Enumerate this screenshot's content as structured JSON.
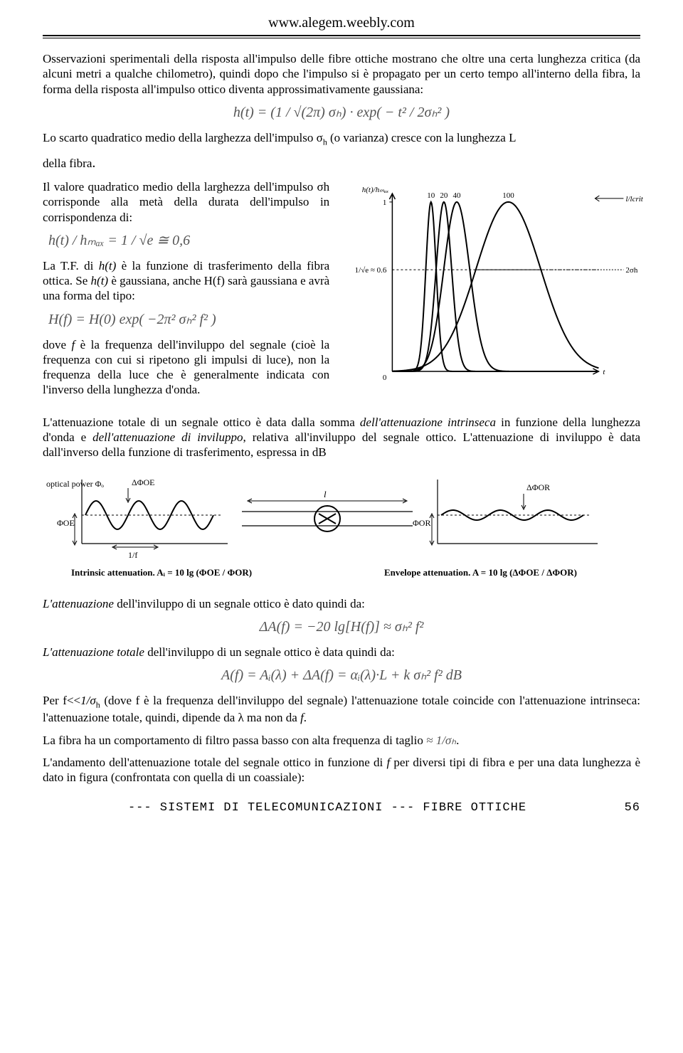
{
  "header": {
    "url": "www.alegem.weebly.com"
  },
  "p1": "Osservazioni sperimentali della risposta all'impulso delle fibre ottiche mostrano che oltre una certa lunghezza critica (da alcuni metri a qualche chilometro), quindi dopo che l'impulso si è propagato per un certo tempo all'interno della fibra, la forma della risposta all'impulso ottico diventa approssimativamente gaussiana:",
  "f1": "h(t) = (1 / √(2π) σₕ) · exp( − t² / 2σₕ² )",
  "p2a": "Lo scarto quadratico medio della larghezza dell'impulso σ",
  "p2b": " (o varianza)  cresce con la lunghezza L",
  "p2c": "della fibra",
  "left": {
    "p1": "Il valore quadratico medio della larghezza dell'impulso σh corrisponde alla metà della durata dell'impulso in corrispondenza di:",
    "f1": "h(t) / hₘₐₓ = 1 / √e ≅ 0,6",
    "p2a": "La T.F. di ",
    "p2b": "h(t)",
    "p2c": " è la funzione di trasferimento della fibra ottica. Se ",
    "p2d": "h(t)",
    "p2e": " è gaussiana, anche H(f) sarà gaussiana e avrà una forma del tipo:",
    "f2": "H(f) = H(0) exp( −2π² σₕ² f² )",
    "p3a": "dove ",
    "p3b": "f",
    "p3c": " è la frequenza dell'inviluppo del segnale (cioè la frequenza con cui si ripetono gli impulsi di luce), non la frequenza della luce che è generalmente indicata con l'inverso della lunghezza d'onda."
  },
  "gauss_chart": {
    "type": "line",
    "ylabel": "h(t)/hₘₐₓ",
    "yline": {
      "label": "1/√e ≈ 0.6",
      "y": 0.6
    },
    "xlabel": "t",
    "right_arrow_label": "l/lcrit",
    "right_width_label": "2σh",
    "curves": [
      {
        "label": "10",
        "center": 60,
        "sigma": 8,
        "color": "#000000",
        "linewidth": 2
      },
      {
        "label": "20",
        "center": 80,
        "sigma": 12,
        "color": "#000000",
        "linewidth": 2
      },
      {
        "label": "40",
        "center": 100,
        "sigma": 20,
        "color": "#000000",
        "linewidth": 2
      },
      {
        "label": "100",
        "center": 180,
        "sigma": 50,
        "color": "#000000",
        "linewidth": 2
      }
    ],
    "xlim": [
      0,
      320
    ],
    "ylim": [
      0,
      1.05
    ],
    "background_color": "#ffffff",
    "axis_color": "#000000",
    "label_fontsize": 11
  },
  "p3a": "L'attenuazione totale di un segnale ottico è data dalla somma ",
  "p3b": "dell'attenuazione intrinseca",
  "p3c": " in funzione della lunghezza d'onda e ",
  "p3d": "dell'attenuazione di inviluppo",
  "p3e": ", relativa all'inviluppo del segnale ottico. L'attenuazione di inviluppo è data dall'inverso della funzione di trasferimento, espressa in dB",
  "atten_diagram": {
    "type": "infographic",
    "left_block": {
      "top_label": "optical power Φₒ",
      "delta_label": "ΔΦOE",
      "base_label": "ΦOE",
      "period_label": "1/f",
      "caption": "Intrinsic attenuation.  Aᵢ = 10 lg (ΦOE / ΦOR)"
    },
    "mid_label": "l",
    "right_block": {
      "delta_label": "ΔΦOR",
      "base_label": "ΦOR",
      "caption": "Envelope attenuation.  A = 10 lg (ΔΦOE / ΔΦOR)"
    },
    "wave": {
      "freq": 3,
      "amp_in": 20,
      "amp_out": 7,
      "linewidth": 2,
      "color": "#000000"
    },
    "background_color": "#ffffff"
  },
  "p4a": "L'attenuazione",
  "p4b": " dell'inviluppo di un segnale ottico è dato quindi da:",
  "f4": "ΔA(f) = −20 lg[H(f)] ≈ σₕ² f²",
  "p5a": "L'attenuazione totale",
  "p5b": " dell'inviluppo di un segnale ottico è data quindi da:",
  "f5": "A(f) = Aᵢ(λ) + ΔA(f) = αᵢ(λ)·L + k σₕ² f²      dB",
  "p6a": "Per f<<",
  "p6b": "1/σ",
  "p6c": " (dove f è la frequenza dell'inviluppo del segnale) l'attenuazione totale coincide con l'attenuazione intrinseca: l'attenuazione totale, quindi, dipende da λ ma non da ",
  "p6d": "f",
  "p6e": ".",
  "p7a": "La fibra ha un comportamento di filtro passa basso con alta frequenza di taglio ",
  "p7b": "≈ 1/σₕ",
  "p7c": ".",
  "p8a": "L'andamento dell'attenuazione totale del segnale ottico in funzione di ",
  "p8b": "f ",
  "p8c": " per diversi tipi di fibra e per una data lunghezza è dato in figura (confrontata con quella di un coassiale):",
  "footer": {
    "text": "--- SISTEMI DI TELECOMUNICAZIONI --- FIBRE OTTICHE",
    "page": "56"
  }
}
